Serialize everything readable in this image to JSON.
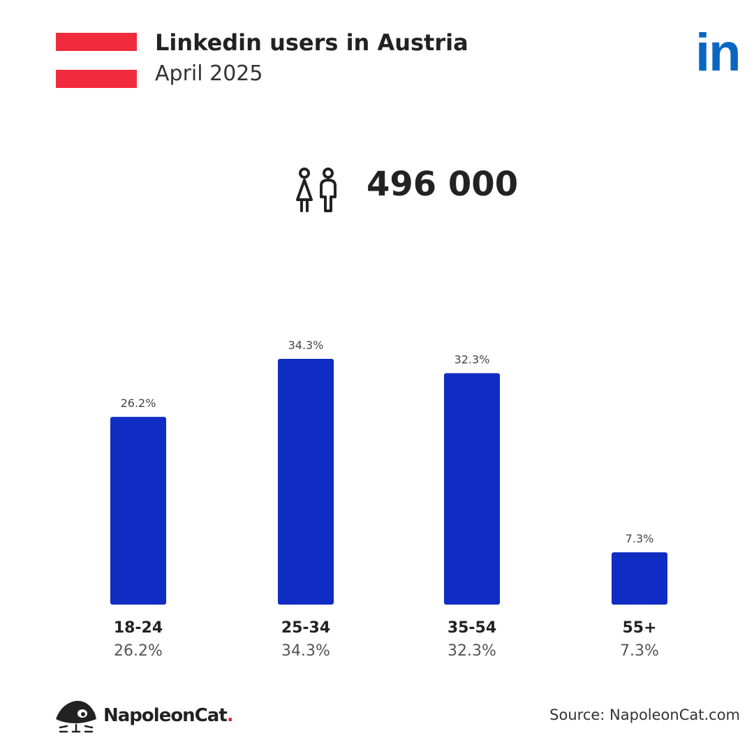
{
  "header": {
    "title": "Linkedin users in Austria",
    "subtitle": "April 2025",
    "logo_text": "in"
  },
  "flag": {
    "colors": [
      "#ef2b3d",
      "#ffffff",
      "#ef2b3d"
    ]
  },
  "colors": {
    "bar": "#0f2cc3",
    "linkedin": "#0a66c2",
    "text": "#222222",
    "muted": "#555555"
  },
  "summary": {
    "icon": "users-icon",
    "total": "496 000"
  },
  "chart_data": {
    "type": "bar",
    "categories": [
      "18-24",
      "25-34",
      "35-54",
      "55+"
    ],
    "values": [
      26.2,
      34.3,
      32.3,
      7.3
    ],
    "value_labels": [
      "26.2%",
      "34.3%",
      "32.3%",
      "7.3%"
    ],
    "title": "",
    "xlabel": "",
    "ylabel": "",
    "ylim": [
      0,
      34.3
    ],
    "grid": false,
    "legend": "none"
  },
  "footer": {
    "brand_name": "NapoleonCat",
    "brand_dot": ".",
    "brand_icon": "napoleoncat-logo-icon",
    "source": "Source: NapoleonCat.com"
  }
}
